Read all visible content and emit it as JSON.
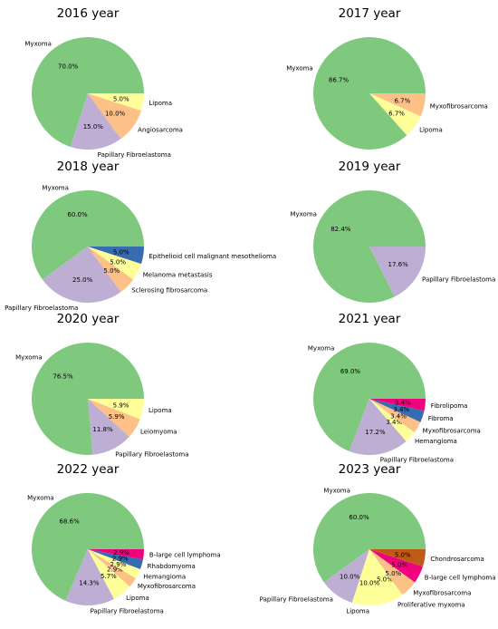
{
  "palette": {
    "Myxoma": "#7fc97f",
    "Papillary Fibroelastoma": "#beaed4",
    "Angiosarcoma": "#fdc086",
    "Leiomyoma": "#fdc086",
    "Myxofibrosarcoma": "#fdc086",
    "Lipoma": "#ffff99",
    "Hemangioma": "#ffff99",
    "Proliferative myxoma": "#ffff99",
    "Epithelioid cell malignant mesothelioma": "#386cb0",
    "Fibroma": "#386cb0",
    "Rhabdomyoma": "#386cb0",
    "Fibrolipoma": "#f0027f",
    "B-large cell lymphoma": "#f0027f",
    "Chondrosarcoma": "#bf5b17",
    "Melanoma metastasis": "#ffff99",
    "Sclerosing fibrosarcoma": "#fdc086"
  },
  "chart_data": [
    {
      "type": "pie",
      "title": "2016 year",
      "slices": [
        {
          "label": "Myxoma",
          "value": 70.0,
          "pct": "70.0%"
        },
        {
          "label": "Papillary Fibroelastoma",
          "value": 15.0,
          "pct": "15.0%"
        },
        {
          "label": "Angiosarcoma",
          "value": 10.0,
          "pct": "10.0%"
        },
        {
          "label": "Lipoma",
          "value": 5.0,
          "pct": "5.0%"
        }
      ]
    },
    {
      "type": "pie",
      "title": "2017 year",
      "slices": [
        {
          "label": "Myxoma",
          "value": 86.7,
          "pct": "86.7%"
        },
        {
          "label": "Lipoma",
          "value": 6.7,
          "pct": "6.7%"
        },
        {
          "label": "Myxofibrosarcoma",
          "value": 6.7,
          "pct": "6.7%"
        }
      ]
    },
    {
      "type": "pie",
      "title": "2018 year",
      "slices": [
        {
          "label": "Myxoma",
          "value": 60.0,
          "pct": "60.0%"
        },
        {
          "label": "Papillary Fibroelastoma",
          "value": 25.0,
          "pct": "25.0%"
        },
        {
          "label": "Sclerosing fibrosarcoma",
          "value": 5.0,
          "pct": "5.0%"
        },
        {
          "label": "Melanoma metastasis",
          "value": 5.0,
          "pct": "5.0%"
        },
        {
          "label": "Epithelioid cell malignant mesothelioma",
          "value": 5.0,
          "pct": "5.0%"
        }
      ]
    },
    {
      "type": "pie",
      "title": "2019 year",
      "slices": [
        {
          "label": "Myxoma",
          "value": 82.4,
          "pct": "82.4%"
        },
        {
          "label": "Papillary Fibroelastoma",
          "value": 17.6,
          "pct": "17.6%"
        }
      ]
    },
    {
      "type": "pie",
      "title": "2020 year",
      "slices": [
        {
          "label": "Myxoma",
          "value": 76.5,
          "pct": "76.5%"
        },
        {
          "label": "Papillary Fibroelastoma",
          "value": 11.8,
          "pct": "11.8%"
        },
        {
          "label": "Leiomyoma",
          "value": 5.9,
          "pct": "5.9%"
        },
        {
          "label": "Lipoma",
          "value": 5.9,
          "pct": "5.9%"
        }
      ]
    },
    {
      "type": "pie",
      "title": "2021 year",
      "slices": [
        {
          "label": "Myxoma",
          "value": 69.0,
          "pct": "69.0%"
        },
        {
          "label": "Papillary Fibroelastoma",
          "value": 17.2,
          "pct": "17.2%"
        },
        {
          "label": "Hemangioma",
          "value": 3.4,
          "pct": "3.4%"
        },
        {
          "label": "Myxofibrosarcoma",
          "value": 3.4,
          "pct": "3.4%"
        },
        {
          "label": "Fibroma",
          "value": 3.4,
          "pct": "3.4%"
        },
        {
          "label": "Fibrolipoma",
          "value": 3.4,
          "pct": "3.4%"
        }
      ]
    },
    {
      "type": "pie",
      "title": "2022 year",
      "slices": [
        {
          "label": "Myxoma",
          "value": 68.6,
          "pct": "68.6%"
        },
        {
          "label": "Papillary Fibroelastoma",
          "value": 14.3,
          "pct": "14.3%"
        },
        {
          "label": "Lipoma",
          "value": 5.7,
          "pct": "5.7%"
        },
        {
          "label": "Myxofibrosarcoma",
          "value": 2.9,
          "pct": "2.9%"
        },
        {
          "label": "Hemangioma",
          "value": 2.9,
          "pct": "2.9%"
        },
        {
          "label": "Rhabdomyoma",
          "value": 2.9,
          "pct": "2.9%"
        },
        {
          "label": "B-large cell lymphoma",
          "value": 2.9,
          "pct": "2.9%"
        }
      ]
    },
    {
      "type": "pie",
      "title": "2023 year",
      "slices": [
        {
          "label": "Myxoma",
          "value": 60.0,
          "pct": "60.0%"
        },
        {
          "label": "Papillary Fibroelastoma",
          "value": 10.0,
          "pct": "10.0%"
        },
        {
          "label": "Lipoma",
          "value": 10.0,
          "pct": "10.0%"
        },
        {
          "label": "Proliferative myxoma",
          "value": 5.0,
          "pct": "5.0%"
        },
        {
          "label": "Myxofibrosarcoma",
          "value": 5.0,
          "pct": "5.0%"
        },
        {
          "label": "B-large cell lymphoma",
          "value": 5.0,
          "pct": "5.0%"
        },
        {
          "label": "Chondrosarcoma",
          "value": 5.0,
          "pct": "5.0%"
        }
      ]
    }
  ]
}
